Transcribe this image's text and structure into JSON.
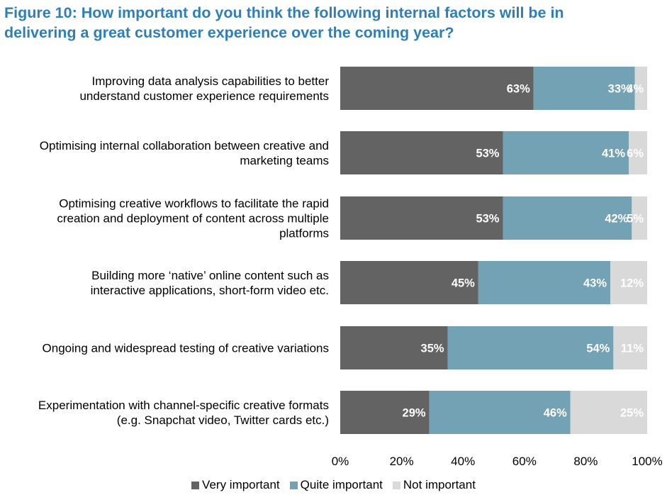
{
  "title_line1": "Figure 10: How important do you think the following internal factors will be in",
  "title_line2": "delivering a great customer experience over the coming year?",
  "chart_data": {
    "type": "bar",
    "orientation": "horizontal",
    "stacked": true,
    "categories": [
      [
        "Improving data analysis capabilities to better",
        "understand customer experience requirements"
      ],
      [
        "Optimising internal collaboration between creative and",
        "marketing teams"
      ],
      [
        "Optimising creative workflows to facilitate the rapid",
        "creation and deployment of content across multiple",
        "platforms"
      ],
      [
        "Building more ‘native’ online content such as",
        "interactive applications, short-form video etc."
      ],
      [
        "Ongoing and widespread testing of creative variations"
      ],
      [
        "Experimentation with channel-specific creative formats",
        "(e.g. Snapchat video, Twitter cards etc.)"
      ]
    ],
    "series": [
      {
        "name": "Very important",
        "color": "#636363",
        "values": [
          63,
          53,
          53,
          45,
          35,
          29
        ]
      },
      {
        "name": "Quite important",
        "color": "#74a2b5",
        "values": [
          33,
          41,
          42,
          43,
          54,
          46
        ]
      },
      {
        "name": "Not important",
        "color": "#d9d9d9",
        "values": [
          4,
          6,
          5,
          12,
          11,
          25
        ]
      }
    ],
    "data_labels": [
      [
        "63%",
        "53%",
        "53%",
        "45%",
        "35%",
        "29%"
      ],
      [
        "33%",
        "41%",
        "42%",
        "43%",
        "54%",
        "46%"
      ],
      [
        "4%",
        "6%",
        "5%",
        "12%",
        "11%",
        "25%"
      ]
    ],
    "xlim": [
      0,
      100
    ],
    "xticks": [
      "0%",
      "20%",
      "40%",
      "60%",
      "80%",
      "100%"
    ],
    "grid": false,
    "legend_position": "bottom"
  }
}
